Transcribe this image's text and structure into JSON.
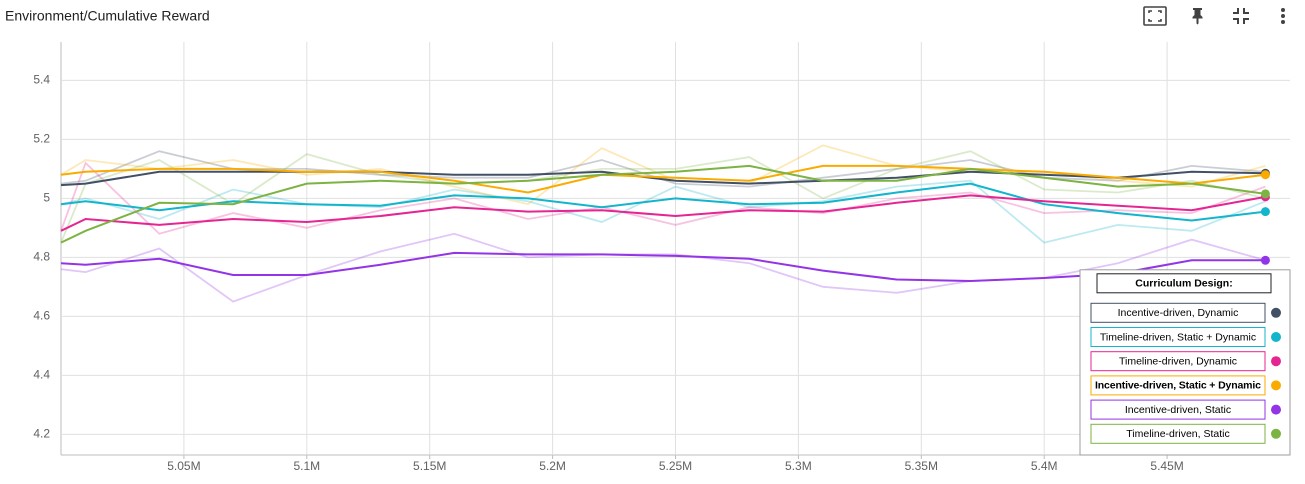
{
  "chart_data": {
    "type": "line",
    "title": "Environment/Cumulative Reward",
    "x": [
      5000000,
      5010000,
      5040000,
      5070000,
      5100000,
      5130000,
      5160000,
      5190000,
      5220000,
      5250000,
      5280000,
      5310000,
      5340000,
      5370000,
      5400000,
      5430000,
      5460000,
      5490000
    ],
    "xlim": [
      5000000,
      5500000
    ],
    "xticks": [
      {
        "value": 5050000,
        "label": "5.05M"
      },
      {
        "value": 5100000,
        "label": "5.1M"
      },
      {
        "value": 5150000,
        "label": "5.15M"
      },
      {
        "value": 5200000,
        "label": "5.2M"
      },
      {
        "value": 5250000,
        "label": "5.25M"
      },
      {
        "value": 5300000,
        "label": "5.3M"
      },
      {
        "value": 5350000,
        "label": "5.35M"
      },
      {
        "value": 5400000,
        "label": "5.4M"
      },
      {
        "value": 5450000,
        "label": "5.45M"
      }
    ],
    "ylim": [
      4.13,
      5.53
    ],
    "yticks": [
      4.2,
      4.4,
      4.6,
      4.8,
      5,
      5.2,
      5.4
    ],
    "grid": true,
    "legend_title": "Curriculum Design:",
    "legend_position": "bottom-right",
    "series": [
      {
        "name": "Incentive-driven, Dynamic",
        "color": "#425066",
        "values": [
          5.045,
          5.05,
          5.09,
          5.09,
          5.09,
          5.09,
          5.08,
          5.08,
          5.09,
          5.06,
          5.05,
          5.06,
          5.07,
          5.09,
          5.08,
          5.07,
          5.09,
          5.085
        ],
        "raw_values": [
          5.05,
          5.06,
          5.16,
          5.1,
          5.1,
          5.08,
          5.07,
          5.07,
          5.13,
          5.05,
          5.04,
          5.07,
          5.1,
          5.13,
          5.07,
          5.06,
          5.11,
          5.09
        ]
      },
      {
        "name": "Timeline-driven, Static + Dynamic",
        "color": "#12b5cb",
        "values": [
          4.98,
          4.99,
          4.96,
          4.99,
          4.98,
          4.975,
          5.01,
          5.0,
          4.97,
          5.0,
          4.98,
          4.985,
          5.02,
          5.05,
          4.98,
          4.95,
          4.925,
          4.955
        ],
        "raw_values": [
          4.98,
          5.0,
          4.93,
          5.03,
          4.98,
          4.97,
          5.03,
          4.99,
          4.92,
          5.04,
          4.97,
          4.99,
          5.04,
          5.06,
          4.85,
          4.91,
          4.89,
          4.99
        ]
      },
      {
        "name": "Timeline-driven, Dynamic",
        "color": "#e52592",
        "values": [
          4.89,
          4.93,
          4.91,
          4.93,
          4.92,
          4.94,
          4.97,
          4.955,
          4.96,
          4.94,
          4.96,
          4.955,
          4.985,
          5.01,
          4.99,
          4.975,
          4.96,
          5.005
        ],
        "raw_values": [
          4.89,
          5.12,
          4.88,
          4.95,
          4.9,
          4.96,
          5.0,
          4.93,
          4.97,
          4.91,
          4.97,
          4.95,
          5.0,
          5.02,
          4.95,
          4.96,
          4.95,
          5.04
        ]
      },
      {
        "name": "Incentive-driven, Static + Dynamic",
        "color": "#f9ab00",
        "values": [
          5.08,
          5.09,
          5.1,
          5.1,
          5.09,
          5.09,
          5.06,
          5.02,
          5.08,
          5.07,
          5.06,
          5.11,
          5.11,
          5.1,
          5.09,
          5.07,
          5.05,
          5.08
        ],
        "raw_values": [
          5.08,
          5.13,
          5.1,
          5.13,
          5.08,
          5.1,
          5.04,
          4.98,
          5.17,
          5.06,
          5.05,
          5.18,
          5.11,
          5.09,
          5.09,
          5.06,
          5.04,
          5.11
        ]
      },
      {
        "name": "Incentive-driven, Static",
        "color": "#9334e6",
        "values": [
          4.78,
          4.775,
          4.795,
          4.74,
          4.74,
          4.775,
          4.815,
          4.81,
          4.81,
          4.805,
          4.795,
          4.755,
          4.725,
          4.72,
          4.73,
          4.745,
          4.79,
          4.79
        ],
        "raw_values": [
          4.76,
          4.75,
          4.83,
          4.65,
          4.74,
          4.82,
          4.88,
          4.8,
          4.81,
          4.81,
          4.78,
          4.7,
          4.68,
          4.72,
          4.73,
          4.78,
          4.86,
          4.79
        ]
      },
      {
        "name": "Timeline-driven, Static",
        "color": "#7cb342",
        "values": [
          4.85,
          4.89,
          4.985,
          4.98,
          5.05,
          5.06,
          5.05,
          5.06,
          5.08,
          5.09,
          5.11,
          5.06,
          5.06,
          5.1,
          5.07,
          5.04,
          5.05,
          5.015
        ],
        "raw_values": [
          4.85,
          5.05,
          5.13,
          4.98,
          5.15,
          5.08,
          5.05,
          5.06,
          5.1,
          5.1,
          5.14,
          5.0,
          5.1,
          5.16,
          5.03,
          5.02,
          5.06,
          5.0
        ]
      }
    ]
  }
}
